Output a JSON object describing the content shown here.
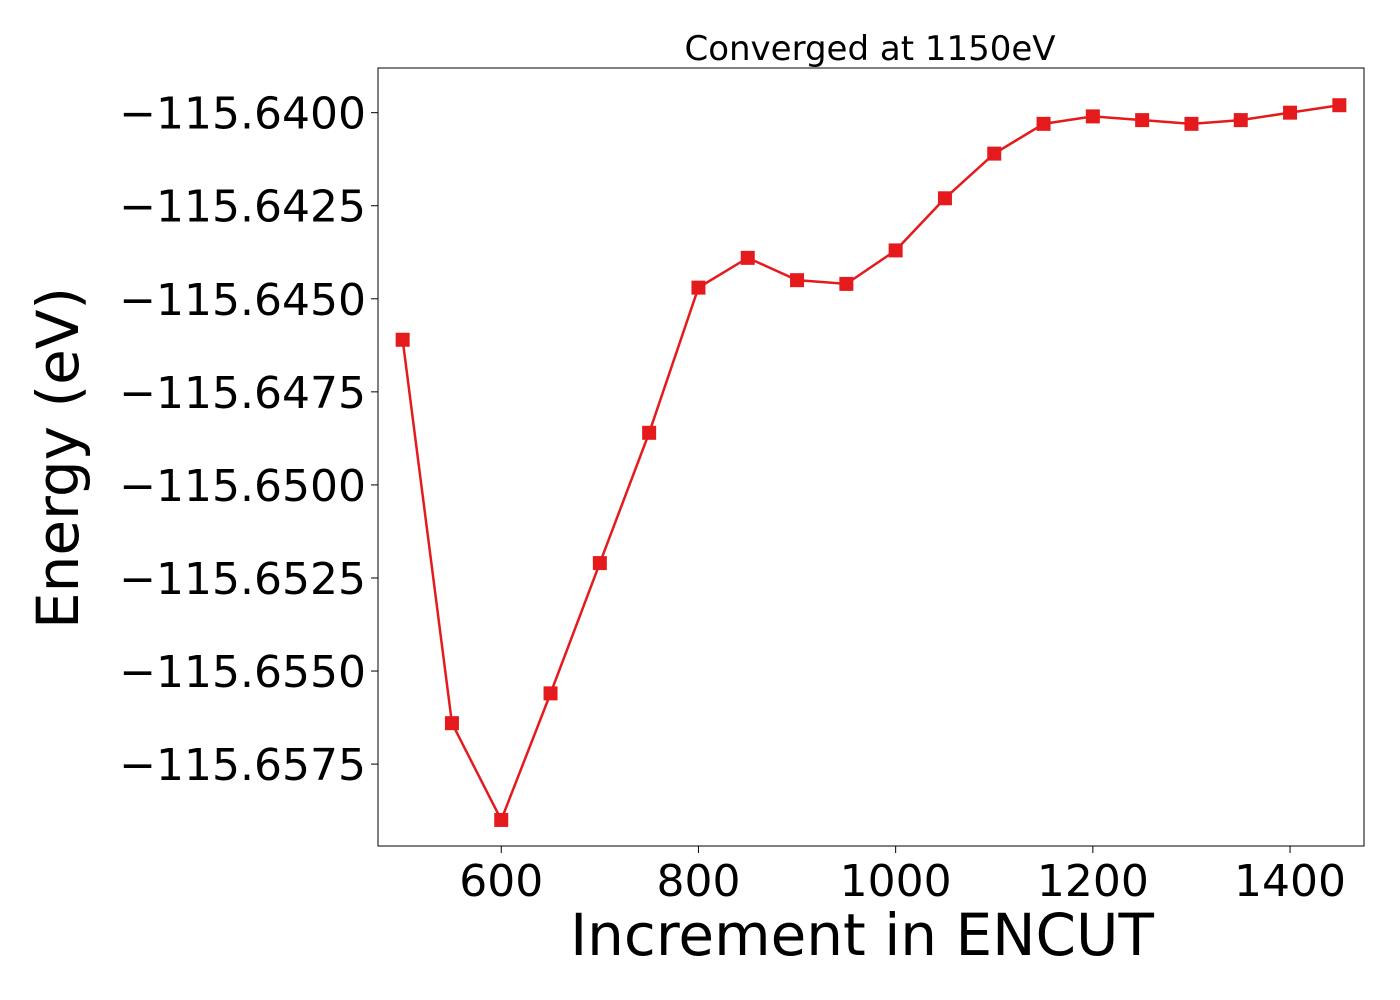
{
  "chart_data": {
    "type": "line",
    "title": "Converged at 1150eV",
    "xlabel": "Increment in ENCUT",
    "ylabel": "Energy (eV)",
    "xlim": [
      475,
      1475
    ],
    "ylim": [
      -115.6597,
      -115.6388
    ],
    "xticks": [
      600,
      800,
      1000,
      1200,
      1400
    ],
    "yticks": [
      -115.64,
      -115.6425,
      -115.645,
      -115.6475,
      -115.65,
      -115.6525,
      -115.655,
      -115.6575
    ],
    "ytick_labels": [
      "−115.6400",
      "−115.6425",
      "−115.6450",
      "−115.6475",
      "−115.6500",
      "−115.6525",
      "−115.6550",
      "−115.6575"
    ],
    "grid": false,
    "legend": "none",
    "series": [
      {
        "color": "#e41a1c",
        "marker": "square",
        "x": [
          500,
          550,
          600,
          650,
          700,
          750,
          800,
          850,
          900,
          950,
          1000,
          1050,
          1100,
          1150,
          1200,
          1250,
          1300,
          1350,
          1400,
          1450
        ],
        "y": [
          -115.6461,
          -115.6564,
          -115.659,
          -115.6556,
          -115.6521,
          -115.6486,
          -115.6447,
          -115.6439,
          -115.6445,
          -115.6446,
          -115.6437,
          -115.6423,
          -115.6411,
          -115.6403,
          -115.6401,
          -115.6402,
          -115.6403,
          -115.6402,
          -115.64,
          -115.6398
        ]
      }
    ]
  }
}
